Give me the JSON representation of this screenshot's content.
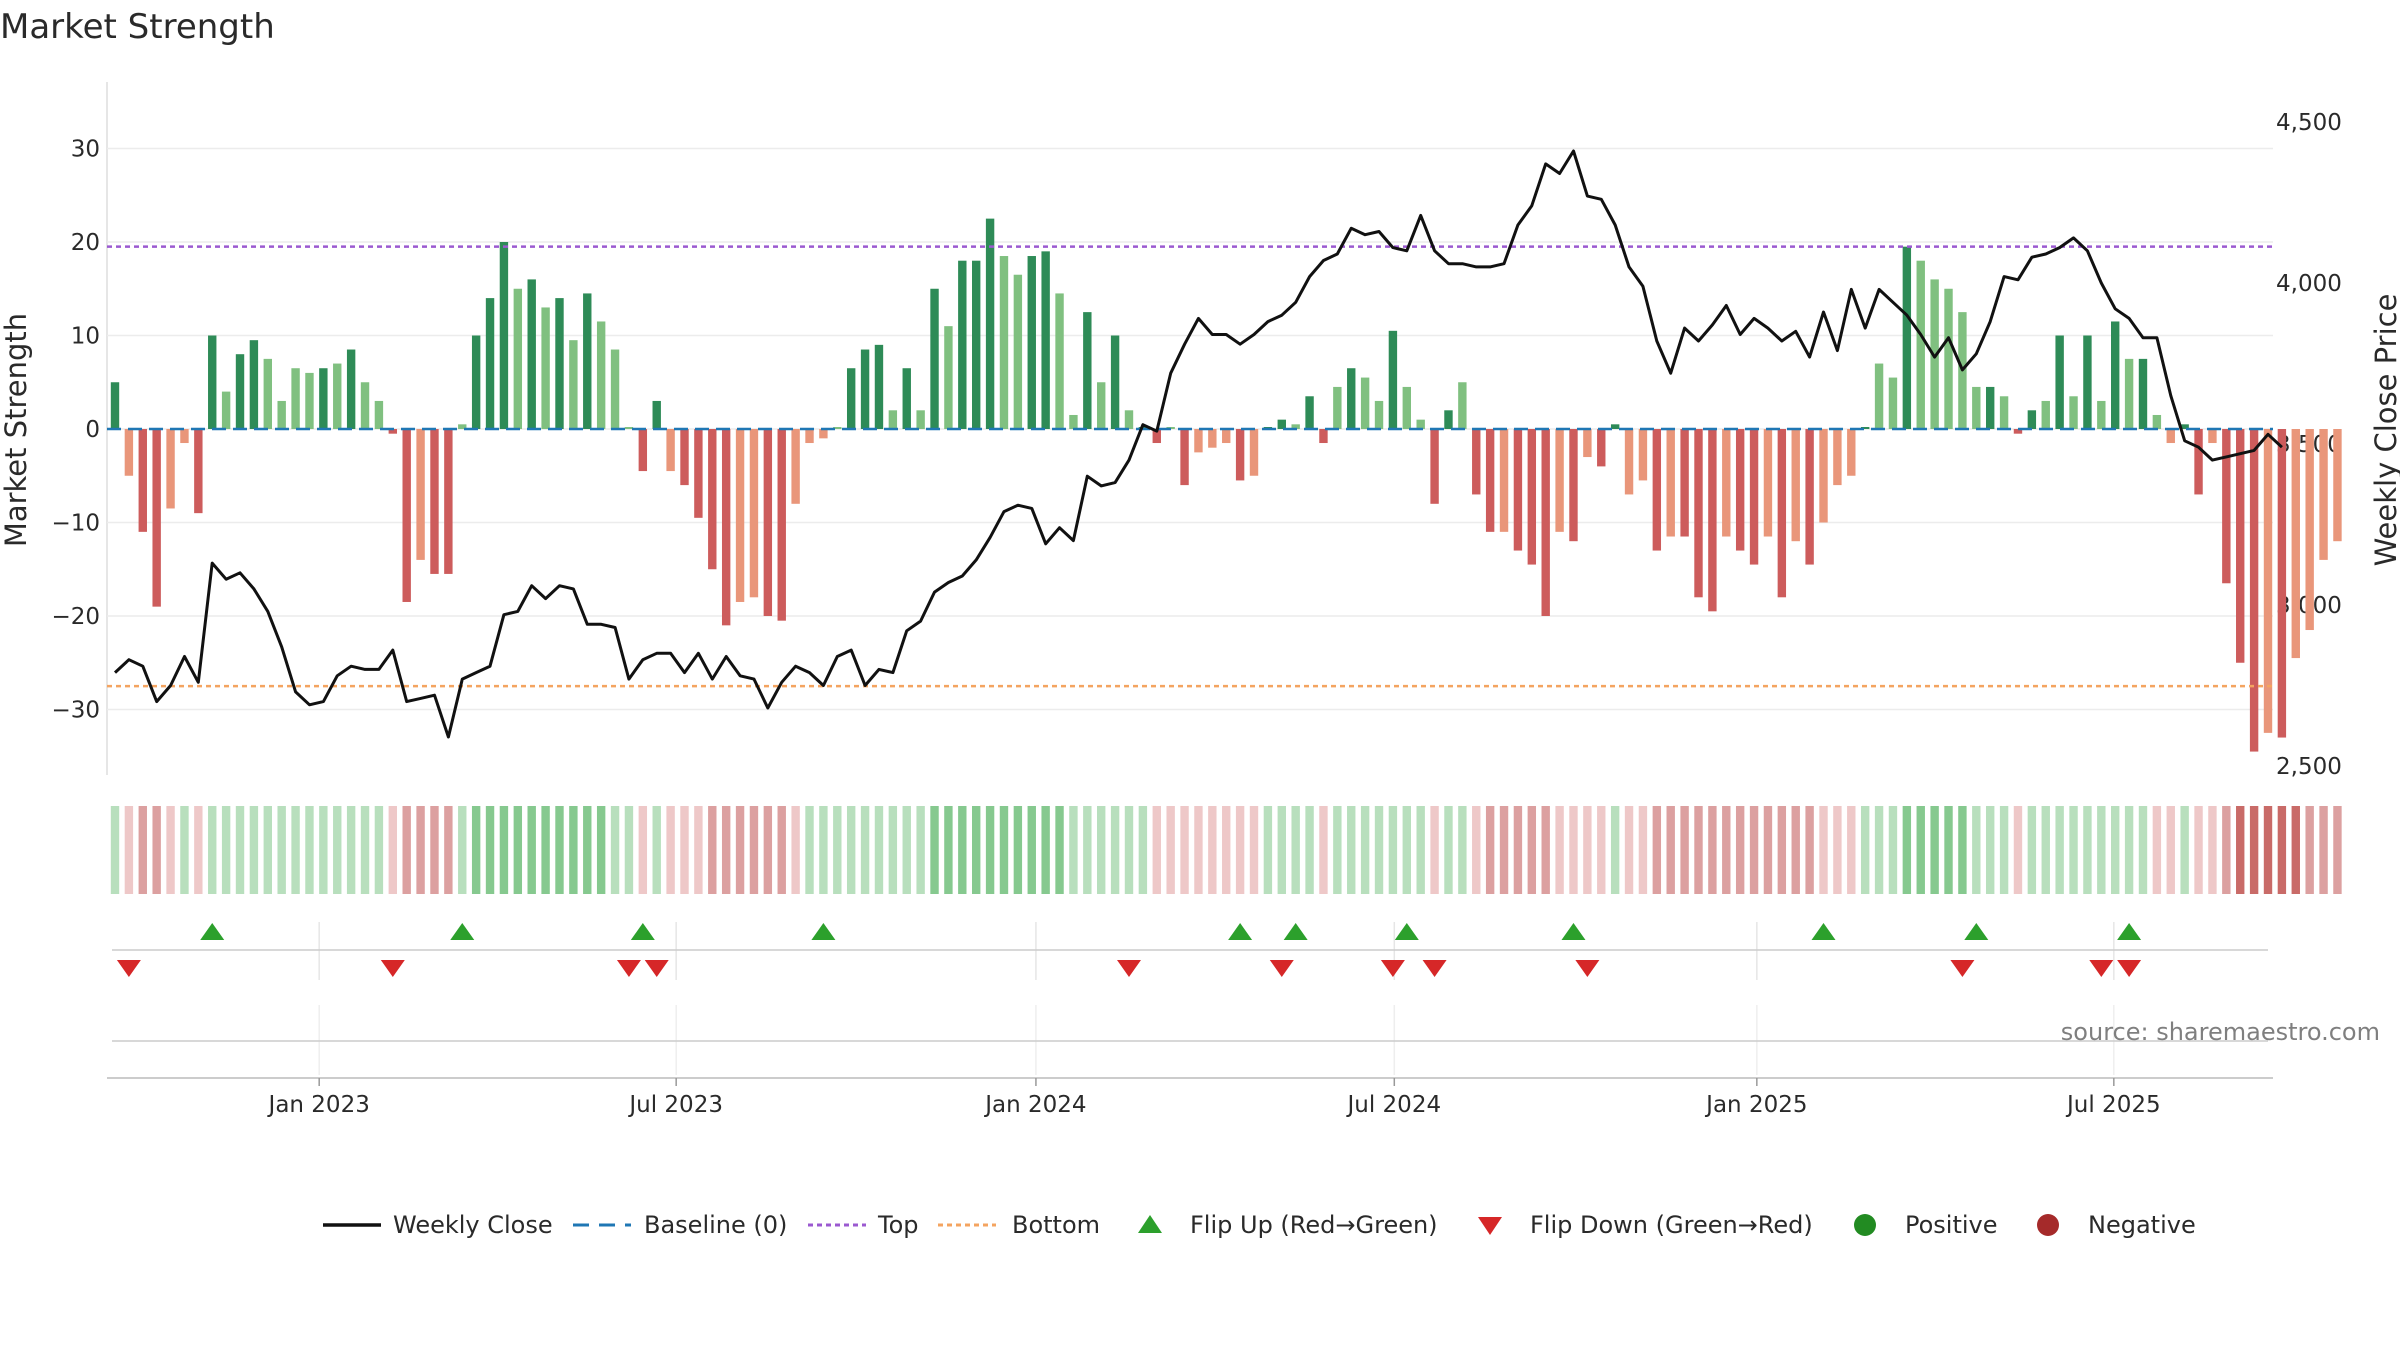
{
  "chart_data": {
    "type": "bar",
    "title": "Market Strength",
    "source": "source: sharemaestro.com",
    "y_left": {
      "label": "Market Strength",
      "range": [
        -37,
        37
      ],
      "ticks": [
        30,
        20,
        10,
        0,
        -10,
        -20,
        -30
      ],
      "tick_labels": [
        "30",
        "20",
        "10",
        "0",
        "−10",
        "−20",
        "−30"
      ]
    },
    "y_right": {
      "label": "Weekly Close Price",
      "range": [
        2470,
        4550
      ],
      "ticks": [
        4500,
        4000,
        3500,
        3000,
        2500
      ],
      "tick_labels": [
        "4,500",
        "4,000",
        "3,500",
        "3,000",
        "2,500"
      ]
    },
    "x_axis": {
      "weeks_span": [
        0,
        155
      ],
      "ticks": [
        14.7,
        40.4,
        66.3,
        92.1,
        118.2,
        143.9
      ],
      "tick_labels": [
        "Jan 2023",
        "Jul 2023",
        "Jan 2024",
        "Jul 2024",
        "Jan 2025",
        "Jul 2025"
      ]
    },
    "reference_lines": {
      "baseline": 0,
      "top": 19.5,
      "bottom": -27.5
    },
    "colors": {
      "strong_green": "#2e8b57",
      "light_green": "#80c080",
      "strong_red": "#cd5c5c",
      "light_red": "#e9967a",
      "close_line": "#111111",
      "top": "#9b59d0",
      "bottom": "#f4a460",
      "baseline": "#1f77b4",
      "flip_up": "#2ca02c",
      "flip_down": "#d62728",
      "positive": "#228b22",
      "negative": "#a52a2a"
    },
    "strength": [
      5,
      -5,
      -11,
      -19,
      -8.5,
      -1.5,
      -9,
      10,
      4,
      8,
      9.5,
      7.5,
      3,
      6.5,
      6,
      6.5,
      7,
      8.5,
      5,
      3,
      -0.5,
      -18.5,
      -14,
      -15.5,
      -15.5,
      0.5,
      10,
      14,
      20,
      15,
      16,
      13,
      14,
      9.5,
      14.5,
      11.5,
      8.5,
      0,
      -4.5,
      3,
      -4.5,
      -6,
      -9.5,
      -15,
      -21,
      -18.5,
      -18,
      -20,
      -20.5,
      -8,
      -1.5,
      -1,
      0,
      6.5,
      8.5,
      9,
      2,
      6.5,
      2,
      15,
      11,
      18,
      18,
      22.5,
      18.5,
      16.5,
      18.5,
      19,
      14.5,
      1.5,
      12.5,
      5,
      10,
      2,
      0,
      -1.5,
      0,
      -6,
      -2.5,
      -2,
      -1.5,
      -5.5,
      -5,
      0,
      1,
      0.5,
      3.5,
      -1.5,
      4.5,
      6.5,
      5.5,
      3,
      10.5,
      4.5,
      1,
      -8,
      2,
      5,
      -7,
      -11,
      -11,
      -13,
      -14.5,
      -20,
      -11,
      -12,
      -3,
      -4,
      0.5,
      -7,
      -5.5,
      -13,
      -11.5,
      -11.5,
      -18,
      -19.5,
      -11.5,
      -13,
      -14.5,
      -11.5,
      -18,
      -12,
      -14.5,
      -10,
      -6,
      -5,
      0,
      7,
      5.5,
      19.5,
      18,
      16,
      15,
      12.5,
      4.5,
      4.5,
      3.5,
      -0.5,
      2,
      3,
      10,
      3.5,
      10,
      3,
      11.5,
      7.5,
      7.5,
      1.5,
      -1.5,
      0.5,
      -7,
      -1.5,
      -16.5,
      -25,
      -34.5,
      -32.5,
      -33,
      -24.5,
      -21.5,
      -14,
      -12
    ],
    "weekly_close": [
      2790,
      2830,
      2810,
      2700,
      2750,
      2840,
      2760,
      3130,
      3080,
      3100,
      3050,
      2980,
      2870,
      2730,
      2690,
      2700,
      2780,
      2810,
      2800,
      2800,
      2860,
      2700,
      2710,
      2720,
      2590,
      2770,
      2790,
      2810,
      2970,
      2980,
      3060,
      3020,
      3060,
      3050,
      2940,
      2940,
      2930,
      2770,
      2830,
      2850,
      2850,
      2790,
      2850,
      2770,
      2840,
      2780,
      2770,
      2680,
      2760,
      2810,
      2790,
      2750,
      2840,
      2860,
      2750,
      2800,
      2790,
      2920,
      2950,
      3040,
      3070,
      3090,
      3140,
      3210,
      3290,
      3310,
      3300,
      3190,
      3240,
      3200,
      3400,
      3370,
      3380,
      3450,
      3560,
      3540,
      3720,
      3810,
      3890,
      3840,
      3840,
      3810,
      3840,
      3880,
      3900,
      3940,
      4020,
      4070,
      4090,
      4170,
      4150,
      4160,
      4110,
      4100,
      4210,
      4100,
      4060,
      4060,
      4050,
      4050,
      4060,
      4180,
      4240,
      4370,
      4340,
      4410,
      4270,
      4260,
      4180,
      4050,
      3990,
      3820,
      3720,
      3860,
      3820,
      3870,
      3930,
      3840,
      3890,
      3860,
      3820,
      3850,
      3770,
      3910,
      3790,
      3980,
      3860,
      3980,
      3940,
      3900,
      3840,
      3770,
      3830,
      3730,
      3780,
      3880,
      4020,
      4010,
      4080,
      4090,
      4110,
      4140,
      4100,
      4000,
      3920,
      3890,
      3830,
      3830,
      3650,
      3510,
      3490,
      3450,
      3460,
      3470,
      3480,
      3530,
      3490
    ],
    "band_intensity": [
      1,
      -1,
      -2,
      -2,
      -1,
      1,
      -1,
      1,
      1,
      1,
      1,
      1,
      1,
      1,
      1,
      1,
      1,
      1,
      1,
      1,
      -1,
      -2,
      -2,
      -2,
      -2,
      1,
      2,
      2,
      2,
      2,
      2,
      2,
      2,
      2,
      2,
      2,
      1,
      1,
      -1,
      1,
      -1,
      -1,
      -1,
      -2,
      -2,
      -2,
      -2,
      -2,
      -2,
      -1,
      1,
      1,
      1,
      1,
      1,
      1,
      1,
      1,
      1,
      2,
      2,
      2,
      2,
      2,
      2,
      2,
      2,
      2,
      2,
      1,
      1,
      1,
      1,
      1,
      1,
      -1,
      -1,
      -1,
      -1,
      -1,
      -1,
      -1,
      -1,
      1,
      1,
      1,
      1,
      -1,
      1,
      1,
      1,
      1,
      1,
      1,
      1,
      -1,
      1,
      1,
      -1,
      -2,
      -2,
      -2,
      -2,
      -2,
      -1,
      -1,
      -1,
      -1,
      1,
      -1,
      -1,
      -2,
      -2,
      -2,
      -2,
      -2,
      -2,
      -2,
      -2,
      -2,
      -2,
      -2,
      -2,
      -1,
      -1,
      -1,
      1,
      1,
      1,
      2,
      2,
      2,
      2,
      2,
      1,
      1,
      1,
      -1,
      1,
      1,
      1,
      1,
      1,
      1,
      1,
      1,
      1,
      -1,
      -1,
      1,
      -1,
      -1,
      -2,
      -3,
      -3,
      -3,
      -3,
      -3,
      -2,
      -2,
      -2
    ],
    "flip_up_weeks": [
      7,
      25,
      38,
      51,
      81,
      85,
      93,
      105,
      123,
      134,
      145
    ],
    "flip_down_weeks": [
      1,
      20,
      37,
      39,
      73,
      84,
      92,
      95,
      106,
      133,
      143,
      145
    ]
  },
  "legend": [
    {
      "kind": "line",
      "label": "Weekly Close"
    },
    {
      "kind": "baseline",
      "label": "Baseline (0)"
    },
    {
      "kind": "top",
      "label": "Top"
    },
    {
      "kind": "bottom",
      "label": "Bottom"
    },
    {
      "kind": "flip_up",
      "label": "Flip Up (Red→Green)"
    },
    {
      "kind": "flip_down",
      "label": "Flip Down (Green→Red)"
    },
    {
      "kind": "positive",
      "label": "Positive"
    },
    {
      "kind": "negative",
      "label": "Negative"
    }
  ]
}
